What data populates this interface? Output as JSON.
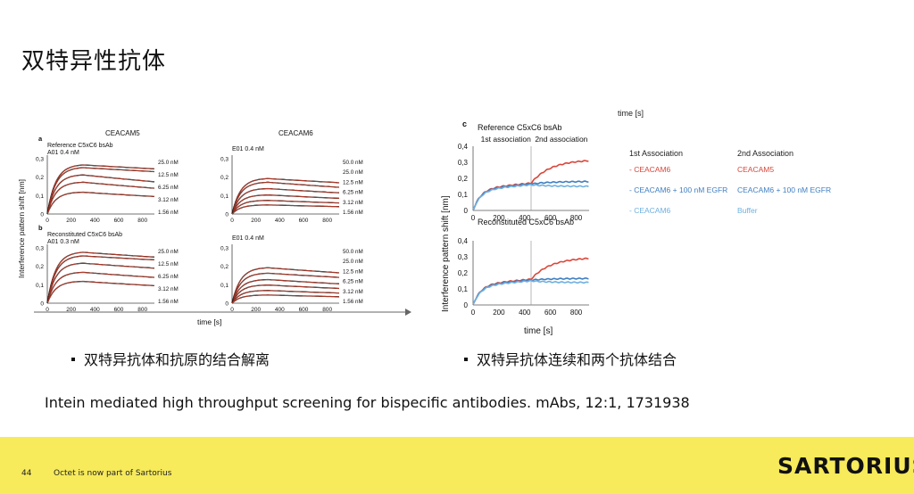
{
  "slide": {
    "title": "双特异性抗体",
    "bullet_left": "双特异抗体和抗原的结合解离",
    "bullet_right": "双特异抗体连续和两个抗体结合",
    "citation": "Intein mediated high throughput screening for bispecific antibodies. mAbs, 12:1, 1731938",
    "footer": {
      "page_number": "44",
      "note": "Octet is now part of Sartorius",
      "logo_text": "SARTORIUS"
    }
  },
  "colors": {
    "footer_bg": "#f7ea5b",
    "fit_red": "#e0452f",
    "data_black": "#111111",
    "trace_red": "#d9473a",
    "trace_blue": "#3f7fc1",
    "trace_lightblue": "#6fb0df"
  },
  "chart_data": [
    {
      "type": "line",
      "panel": "a",
      "group_title": "CEACAM5",
      "label_lines": [
        "Reference C5xC6 bsAb",
        "A01 0.4 nM"
      ],
      "x_ticks": [
        "0",
        "200",
        "400",
        "600",
        "800"
      ],
      "y_ticks": [
        "0",
        "0,1",
        "0,2",
        "0,3"
      ],
      "xlim": [
        0,
        900
      ],
      "ylim": [
        0,
        0.3
      ],
      "association_end": 300,
      "series": [
        {
          "name": "25.0 nM",
          "plateau": 0.27,
          "end": 0.245
        },
        {
          "name": "12.5 nM",
          "plateau": 0.255,
          "end": 0.23
        },
        {
          "name": "6.25 nM",
          "plateau": 0.215,
          "end": 0.175
        },
        {
          "name": "3.12 nM",
          "plateau": 0.175,
          "end": 0.14
        },
        {
          "name": "1.56 nM",
          "plateau": 0.12,
          "end": 0.095
        }
      ]
    },
    {
      "type": "line",
      "panel": "",
      "group_title": "CEACAM6",
      "label_lines": [
        "E01 0.4 nM"
      ],
      "x_ticks": [
        "0",
        "200",
        "400",
        "600",
        "800"
      ],
      "y_ticks": [
        "0",
        "0,1",
        "0,2",
        "0,3"
      ],
      "xlim": [
        0,
        900
      ],
      "ylim": [
        0,
        0.3
      ],
      "association_end": 300,
      "series": [
        {
          "name": "50.0 nM",
          "plateau": 0.195,
          "end": 0.17
        },
        {
          "name": "25.0 nM",
          "plateau": 0.175,
          "end": 0.145
        },
        {
          "name": "12.5 nM",
          "plateau": 0.14,
          "end": 0.115
        },
        {
          "name": "6.25 nM",
          "plateau": 0.105,
          "end": 0.085
        },
        {
          "name": "3.12 nM",
          "plateau": 0.075,
          "end": 0.06
        },
        {
          "name": "1.56 nM",
          "plateau": 0.05,
          "end": 0.04
        }
      ]
    },
    {
      "type": "line",
      "panel": "b",
      "group_title": "",
      "label_lines": [
        "Reconstituted C5xC6 bsAb",
        "A01 0.3 nM"
      ],
      "x_ticks": [
        "0",
        "200",
        "400",
        "600",
        "800"
      ],
      "y_ticks": [
        "0",
        "0,1",
        "0,2",
        "0,3"
      ],
      "xlim": [
        0,
        900
      ],
      "ylim": [
        0,
        0.3
      ],
      "association_end": 300,
      "series": [
        {
          "name": "25.0 nM",
          "plateau": 0.28,
          "end": 0.25
        },
        {
          "name": "12.5 nM",
          "plateau": 0.26,
          "end": 0.235
        },
        {
          "name": "6.25 nM",
          "plateau": 0.22,
          "end": 0.19
        },
        {
          "name": "3.12 nM",
          "plateau": 0.17,
          "end": 0.14
        },
        {
          "name": "1.56 nM",
          "plateau": 0.12,
          "end": 0.095
        }
      ]
    },
    {
      "type": "line",
      "panel": "",
      "group_title": "",
      "label_lines": [
        "E01 0.4 nM"
      ],
      "x_ticks": [
        "0",
        "200",
        "400",
        "600",
        "800"
      ],
      "y_ticks": [
        "0",
        "0,1",
        "0,2",
        "0,3"
      ],
      "xlim": [
        0,
        900
      ],
      "ylim": [
        0,
        0.3
      ],
      "association_end": 300,
      "series": [
        {
          "name": "50.0 nM",
          "plateau": 0.195,
          "end": 0.165
        },
        {
          "name": "25.0 nM",
          "plateau": 0.165,
          "end": 0.14
        },
        {
          "name": "12.5 nM",
          "plateau": 0.13,
          "end": 0.105
        },
        {
          "name": "6.25 nM",
          "plateau": 0.1,
          "end": 0.08
        },
        {
          "name": "3.12 nM",
          "plateau": 0.07,
          "end": 0.055
        },
        {
          "name": "1.56 nM",
          "plateau": 0.045,
          "end": 0.035
        }
      ]
    },
    {
      "type": "line",
      "panel": "c",
      "label_lines": [
        "Reference C5xC6 bsAb"
      ],
      "annotations": [
        "1st association",
        "2nd association"
      ],
      "x_ticks": [
        "0",
        "200",
        "400",
        "600",
        "800"
      ],
      "y_ticks": [
        "0",
        "0,1",
        "0,2",
        "0,3",
        "0,4"
      ],
      "xlim": [
        0,
        900
      ],
      "ylim": [
        0,
        0.4
      ],
      "switch_time": 450,
      "series": [
        {
          "name": "CEACAM6 → CEACAM5",
          "color": "#d9473a",
          "phase1_end": 0.17,
          "phase2_end": 0.31
        },
        {
          "name": "CEACAM6 + 100 nM EGFR → CEACAM6 + 100 nM EGFR",
          "color": "#3f7fc1",
          "phase1_end": 0.165,
          "phase2_end": 0.18
        },
        {
          "name": "CEACAM6 → Buffer",
          "color": "#6fb0df",
          "phase1_end": 0.16,
          "phase2_end": 0.15
        }
      ]
    },
    {
      "type": "line",
      "panel": "",
      "label_lines": [
        "Reconstituted C5xC6 bsAb"
      ],
      "x_ticks": [
        "0",
        "200",
        "400",
        "600",
        "800"
      ],
      "y_ticks": [
        "0",
        "0,1",
        "0,2",
        "0,3",
        "0,4"
      ],
      "xlim": [
        0,
        900
      ],
      "ylim": [
        0,
        0.4
      ],
      "switch_time": 450,
      "series": [
        {
          "name": "CEACAM6 → CEACAM5",
          "color": "#d9473a",
          "phase1_end": 0.16,
          "phase2_end": 0.29
        },
        {
          "name": "CEACAM6 + 100 nM EGFR → CEACAM6 + 100 nM EGFR",
          "color": "#3f7fc1",
          "phase1_end": 0.155,
          "phase2_end": 0.165
        },
        {
          "name": "CEACAM6 → Buffer",
          "color": "#6fb0df",
          "phase1_end": 0.15,
          "phase2_end": 0.14
        }
      ]
    }
  ],
  "figure_labels": {
    "left_ylabel": "Interference pattern shift [nm]",
    "left_xlabel": "time [s]",
    "right_ylabel": "Interference pattern shift [nm]",
    "right_xlabel": "time [s]",
    "right_top_cut": "time [s]"
  },
  "legend_c": {
    "header1": "1st Association",
    "header2": "2nd Association",
    "rows": [
      {
        "first": "- CEACAM6",
        "second": "CEACAM5",
        "color": "#d9473a"
      },
      {
        "first": "- CEACAM6 + 100 nM EGFR",
        "second": "CEACAM6 + 100 nM EGFR",
        "color": "#3f7fc1"
      },
      {
        "first": "- CEACAM6",
        "second": "Buffer",
        "color": "#6fb0df"
      }
    ]
  }
}
